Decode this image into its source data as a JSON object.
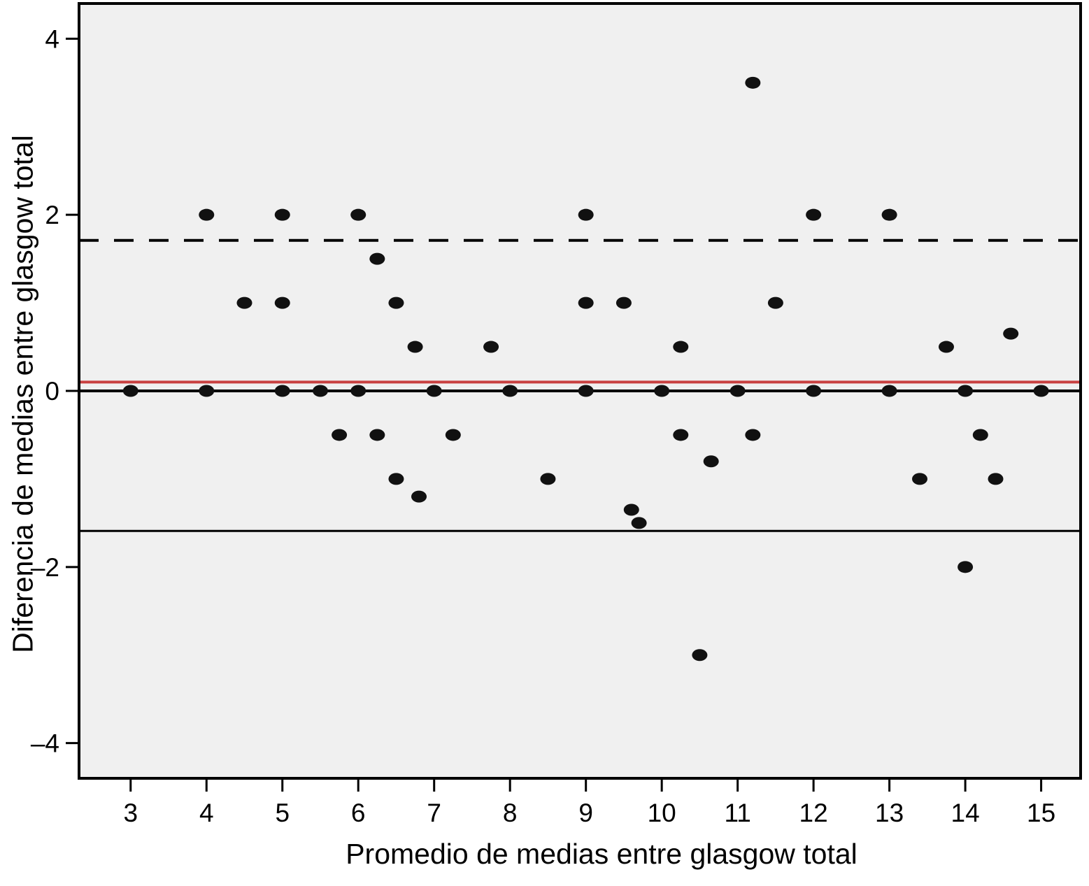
{
  "chart_data": {
    "type": "scatter",
    "title": "",
    "xlabel": "Promedio de medias entre glasgow total",
    "ylabel": "Diferencia de medias entre glasgow total",
    "xlim": [
      2.32,
      15.52
    ],
    "ylim": [
      -4.4,
      4.4
    ],
    "grid": false,
    "legend": "none",
    "x_tick_values": [
      3,
      4,
      5,
      6,
      7,
      8,
      9,
      10,
      11,
      12,
      13,
      14,
      15
    ],
    "x_tick_labels": [
      "3",
      "4",
      "5",
      "6",
      "7",
      "8",
      "9",
      "10",
      "11",
      "12",
      "13",
      "14",
      "15"
    ],
    "y_tick_values": [
      -4,
      -2,
      0,
      2,
      4
    ],
    "y_tick_labels": [
      "–4",
      "–2",
      "0",
      "2",
      "4"
    ],
    "points": [
      [
        11.2,
        3.5
      ],
      [
        4,
        2
      ],
      [
        5,
        2
      ],
      [
        6,
        2
      ],
      [
        9,
        2
      ],
      [
        12,
        2
      ],
      [
        13,
        2
      ],
      [
        6.25,
        1.5
      ],
      [
        4.5,
        1
      ],
      [
        5,
        1
      ],
      [
        6.5,
        1
      ],
      [
        9,
        1
      ],
      [
        9.5,
        1
      ],
      [
        11.5,
        1
      ],
      [
        14.6,
        0.65
      ],
      [
        6.75,
        0.5
      ],
      [
        7.75,
        0.5
      ],
      [
        10.25,
        0.5
      ],
      [
        13.75,
        0.5
      ],
      [
        3,
        0
      ],
      [
        4,
        0
      ],
      [
        5,
        0
      ],
      [
        5.5,
        0
      ],
      [
        6,
        0
      ],
      [
        7,
        0
      ],
      [
        8,
        0
      ],
      [
        9,
        0
      ],
      [
        10,
        0
      ],
      [
        11,
        0
      ],
      [
        12,
        0
      ],
      [
        13,
        0
      ],
      [
        14,
        0
      ],
      [
        15,
        0
      ],
      [
        5.75,
        -0.5
      ],
      [
        6.25,
        -0.5
      ],
      [
        7.25,
        -0.5
      ],
      [
        10.25,
        -0.5
      ],
      [
        11.2,
        -0.5
      ],
      [
        14.2,
        -0.5
      ],
      [
        10.65,
        -0.8
      ],
      [
        6.5,
        -1
      ],
      [
        8.5,
        -1
      ],
      [
        13.4,
        -1
      ],
      [
        14.4,
        -1
      ],
      [
        6.8,
        -1.2
      ],
      [
        9.6,
        -1.35
      ],
      [
        9.7,
        -1.5
      ],
      [
        14,
        -2
      ],
      [
        10.5,
        -3
      ]
    ],
    "reference_lines": [
      {
        "name": "upper-limit-of-agreement",
        "y": 1.71,
        "style": "dashed",
        "color": "#000000",
        "width": 4
      },
      {
        "name": "mean-difference-line",
        "y": 0.1,
        "style": "solid",
        "color": "#c84040",
        "width": 4
      },
      {
        "name": "zero-line",
        "y": 0.0,
        "style": "solid",
        "color": "#000000",
        "width": 4
      },
      {
        "name": "lower-limit-of-agreement",
        "y": -1.59,
        "style": "solid",
        "color": "#000000",
        "width": 3
      }
    ],
    "colors": {
      "point": "#111111",
      "plot_background": "#f0f0f0",
      "outer_background": "#ffffff",
      "frame": "#000000"
    }
  }
}
